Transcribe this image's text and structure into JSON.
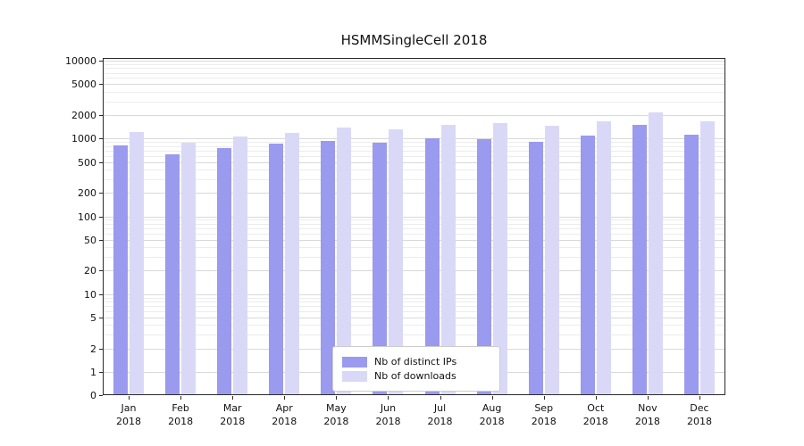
{
  "chart_data": {
    "type": "bar",
    "title": "HSMMSingleCell 2018",
    "scale": "symlog",
    "ylim": [
      0,
      10000
    ],
    "yticks": [
      0,
      1,
      2,
      5,
      10,
      20,
      50,
      100,
      200,
      500,
      1000,
      2000,
      5000,
      10000
    ],
    "grid": "horizontal, major and minor log gridlines",
    "legend_position": "bottom-center-inside",
    "categories": [
      {
        "month": "Jan",
        "year": "2018"
      },
      {
        "month": "Feb",
        "year": "2018"
      },
      {
        "month": "Mar",
        "year": "2018"
      },
      {
        "month": "Apr",
        "year": "2018"
      },
      {
        "month": "May",
        "year": "2018"
      },
      {
        "month": "Jun",
        "year": "2018"
      },
      {
        "month": "Jul",
        "year": "2018"
      },
      {
        "month": "Aug",
        "year": "2018"
      },
      {
        "month": "Sep",
        "year": "2018"
      },
      {
        "month": "Oct",
        "year": "2018"
      },
      {
        "month": "Nov",
        "year": "2018"
      },
      {
        "month": "Dec",
        "year": "2018"
      }
    ],
    "series": [
      {
        "name": "Nb of distinct IPs",
        "color": "#9a9aee",
        "values": [
          820,
          630,
          760,
          850,
          930,
          880,
          1000,
          970,
          900,
          1080,
          1500,
          1120
        ]
      },
      {
        "name": "Nb of downloads",
        "color": "#d9d9f7",
        "values": [
          1200,
          880,
          1050,
          1180,
          1400,
          1300,
          1500,
          1580,
          1450,
          1650,
          2150,
          1650
        ]
      }
    ]
  }
}
